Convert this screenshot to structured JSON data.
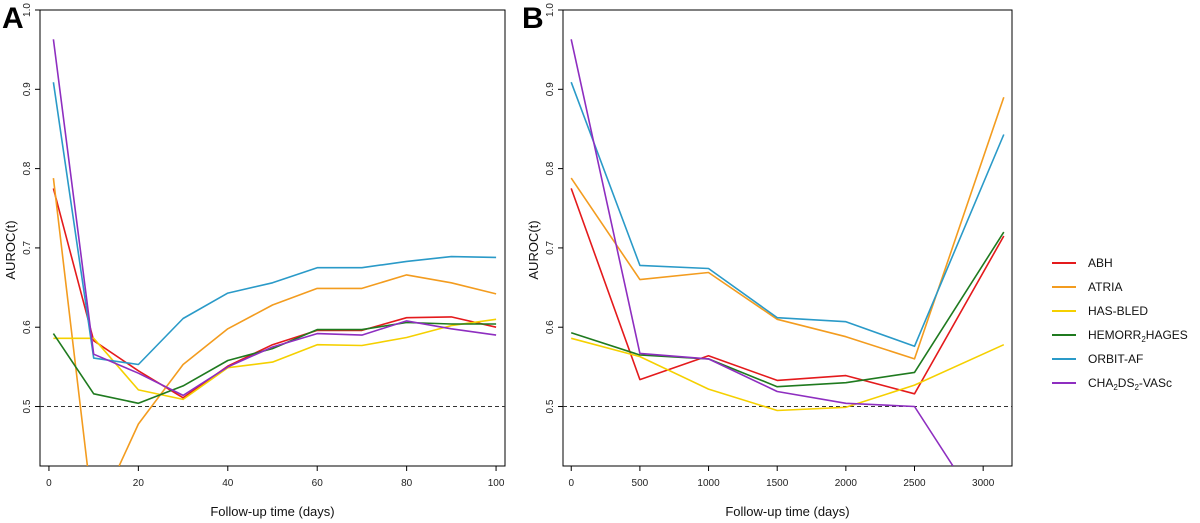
{
  "panel_letters": [
    "A",
    "B"
  ],
  "chart_data": [
    {
      "type": "line",
      "panel": "A",
      "xlabel": "Follow-up time (days)",
      "ylabel": "AUROC(t)",
      "xlim": [
        -2,
        102
      ],
      "ylim": [
        0.425,
        1.0
      ],
      "xticks": [
        0,
        20,
        40,
        60,
        80,
        100
      ],
      "yticks": [
        0.5,
        0.6,
        0.7,
        0.8,
        0.9,
        1.0
      ],
      "reference_line": 0.5,
      "series": [
        {
          "name": "ABH",
          "x": [
            1,
            10,
            20,
            30,
            40,
            50,
            60,
            70,
            80,
            90,
            100
          ],
          "y": [
            0.775,
            0.583,
            0.545,
            0.511,
            0.551,
            0.578,
            0.596,
            0.596,
            0.612,
            0.613,
            0.6
          ]
        },
        {
          "name": "ATRIA",
          "x": [
            1,
            8.6,
            8.6,
            15.7,
            20,
            30,
            40,
            50,
            60,
            70,
            80,
            90,
            100
          ],
          "y": [
            0.788,
            0.425,
            null,
            0.425,
            0.478,
            0.553,
            0.598,
            0.628,
            0.649,
            0.649,
            0.666,
            0.656,
            0.642
          ]
        },
        {
          "name": "HAS-BLED",
          "x": [
            1,
            10,
            20,
            30,
            40,
            50,
            60,
            70,
            80,
            90,
            100
          ],
          "y": [
            0.586,
            0.586,
            0.521,
            0.509,
            0.549,
            0.556,
            0.578,
            0.577,
            0.587,
            0.602,
            0.61
          ]
        },
        {
          "name": "HEMORR2HAGES",
          "x": [
            1,
            10,
            20,
            30,
            40,
            50,
            60,
            70,
            80,
            90,
            100
          ],
          "y": [
            0.592,
            0.516,
            0.504,
            0.526,
            0.558,
            0.573,
            0.597,
            0.597,
            0.606,
            0.604,
            0.604
          ]
        },
        {
          "name": "ORBIT-AF",
          "x": [
            1,
            10,
            20,
            30,
            40,
            50,
            60,
            70,
            80,
            90,
            100
          ],
          "y": [
            0.909,
            0.561,
            0.553,
            0.611,
            0.643,
            0.656,
            0.675,
            0.675,
            0.683,
            0.689,
            0.688
          ]
        },
        {
          "name": "CHA2DS2-VASc",
          "x": [
            1,
            10,
            20,
            30,
            40,
            50,
            60,
            70,
            80,
            90,
            100
          ],
          "y": [
            0.963,
            0.566,
            0.542,
            0.514,
            0.55,
            0.575,
            0.592,
            0.59,
            0.608,
            0.598,
            0.59
          ]
        }
      ]
    },
    {
      "type": "line",
      "panel": "B",
      "xlabel": "Follow-up time (days)",
      "ylabel": "AUROC(t)",
      "xlim": [
        -60,
        3210
      ],
      "ylim": [
        0.425,
        1.0
      ],
      "xticks": [
        0,
        500,
        1000,
        1500,
        2000,
        2500,
        3000
      ],
      "yticks": [
        0.5,
        0.6,
        0.7,
        0.8,
        0.9,
        1.0
      ],
      "reference_line": 0.5,
      "series": [
        {
          "name": "ABH",
          "x": [
            0,
            500,
            1000,
            1500,
            2000,
            2500,
            3150
          ],
          "y": [
            0.775,
            0.534,
            0.564,
            0.533,
            0.539,
            0.516,
            0.715
          ]
        },
        {
          "name": "ATRIA",
          "x": [
            0,
            500,
            1000,
            1500,
            2000,
            2500,
            3150
          ],
          "y": [
            0.788,
            0.66,
            0.669,
            0.61,
            0.588,
            0.56,
            0.89
          ]
        },
        {
          "name": "HAS-BLED",
          "x": [
            0,
            500,
            1000,
            1500,
            2000,
            2500,
            3150
          ],
          "y": [
            0.586,
            0.563,
            0.522,
            0.495,
            0.499,
            0.527,
            0.578
          ]
        },
        {
          "name": "HEMORR2HAGES",
          "x": [
            0,
            500,
            1000,
            1500,
            2000,
            2500,
            3150
          ],
          "y": [
            0.593,
            0.565,
            0.56,
            0.525,
            0.53,
            0.543,
            0.72
          ]
        },
        {
          "name": "ORBIT-AF",
          "x": [
            0,
            500,
            1000,
            1500,
            2000,
            2500,
            3150
          ],
          "y": [
            0.909,
            0.678,
            0.674,
            0.612,
            0.607,
            0.576,
            0.843
          ]
        },
        {
          "name": "CHA2DS2-VASc",
          "x": [
            0,
            500,
            1000,
            1500,
            2000,
            2500,
            2780
          ],
          "y": [
            0.963,
            0.567,
            0.56,
            0.519,
            0.504,
            0.5,
            0.425
          ]
        }
      ]
    }
  ],
  "legend": {
    "placement": "right",
    "entries": [
      {
        "name": "ABH",
        "base": "ABH",
        "sub": "",
        "rest": "",
        "color": "#e41a1c"
      },
      {
        "name": "ATRIA",
        "base": "ATRIA",
        "sub": "",
        "rest": "",
        "color": "#f39c1f"
      },
      {
        "name": "HAS-BLED",
        "base": "HAS-BLED",
        "sub": "",
        "rest": "",
        "color": "#f5d000"
      },
      {
        "name": "HEMORR2HAGES",
        "base": "HEMORR",
        "sub": "2",
        "rest": "HAGES",
        "color": "#1f7a1f"
      },
      {
        "name": "ORBIT-AF",
        "base": "ORBIT-AF",
        "sub": "",
        "rest": "",
        "color": "#2a9ac8"
      },
      {
        "name": "CHA2DS2-VASc",
        "base": "CHA",
        "sub": "2",
        "rest": "DS",
        "sub2": "2",
        "rest2": "-VASc",
        "color": "#8e2ec0"
      }
    ]
  }
}
